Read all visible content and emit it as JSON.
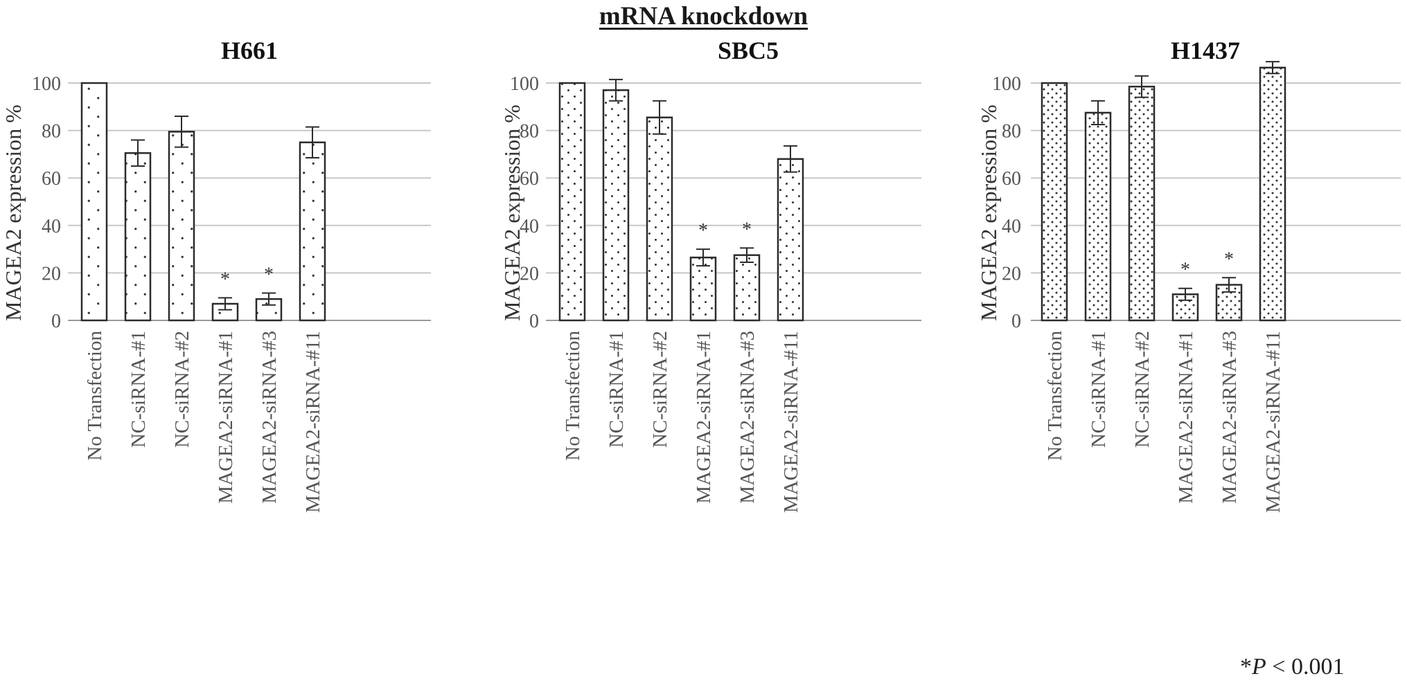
{
  "figure_title": "mRNA knockdown",
  "footnote": {
    "star": "*",
    "p": "P",
    "rest": " < 0.001"
  },
  "colors": {
    "bar_edge": "#2b2b2b",
    "dots": "#333333",
    "grid": "#c8c8c8",
    "axis": "#999999",
    "text": "#555555"
  },
  "chart_data": [
    {
      "type": "bar",
      "title": "H661",
      "ylabel": "MAGEA2  expression %",
      "ylim": [
        0,
        100
      ],
      "yticks": [
        0,
        20,
        40,
        60,
        80,
        100
      ],
      "grid": true,
      "categories": [
        "No Transfection",
        "NC-siRNA-#1",
        "NC-siRNA-#2",
        "MAGEA2-siRNA-#1",
        "MAGEA2-siRNA-#3",
        "MAGEA2-siRNA-#11"
      ],
      "values": [
        100,
        70.5,
        79.5,
        7,
        9,
        75
      ],
      "errors": [
        0,
        5.5,
        6.5,
        2.5,
        2.5,
        6.5
      ],
      "significance": [
        "",
        "",
        "",
        "*",
        "*",
        ""
      ],
      "pattern": "sparse"
    },
    {
      "type": "bar",
      "title": "SBC5",
      "ylabel": "MAGEA2  expression %",
      "ylim": [
        0,
        100
      ],
      "yticks": [
        0,
        20,
        40,
        60,
        80,
        100
      ],
      "grid": true,
      "categories": [
        "No Transfection",
        "NC-siRNA-#1",
        "NC-siRNA-#2",
        "MAGEA2-siRNA-#1",
        "MAGEA2-siRNA-#3",
        "MAGEA2-siRNA-#11"
      ],
      "values": [
        100,
        97,
        85.5,
        26.5,
        27.5,
        68
      ],
      "errors": [
        0,
        4.5,
        7,
        3.5,
        3,
        5.5
      ],
      "significance": [
        "",
        "",
        "",
        "*",
        "*",
        ""
      ],
      "pattern": "medium"
    },
    {
      "type": "bar",
      "title": "H1437",
      "ylabel": "MAGEA2  expression %",
      "ylim": [
        0,
        100
      ],
      "yticks": [
        0,
        20,
        40,
        60,
        80,
        100
      ],
      "grid": true,
      "categories": [
        "No Transfection",
        "NC-siRNA-#1",
        "NC-siRNA-#2",
        "MAGEA2-siRNA-#1",
        "MAGEA2-siRNA-#3",
        "MAGEA2-siRNA-#11"
      ],
      "values": [
        100,
        87.5,
        98.5,
        11,
        15,
        106.5
      ],
      "errors": [
        0,
        5,
        4.5,
        2.5,
        3,
        2.5
      ],
      "significance": [
        "",
        "",
        "",
        "*",
        "*",
        ""
      ],
      "pattern": "dense"
    }
  ]
}
